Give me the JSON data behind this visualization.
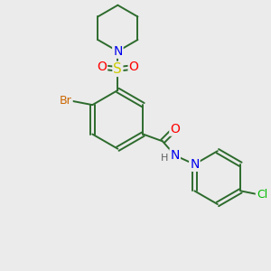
{
  "background_color": "#ebebeb",
  "bond_color": "#2d6b2d",
  "atom_colors": {
    "N": "#0000ee",
    "S": "#cccc00",
    "O": "#ff0000",
    "Br": "#cc6600",
    "Cl": "#00bb00",
    "H": "#606060",
    "C": "#2d6b2d"
  },
  "figsize": [
    3.0,
    3.0
  ],
  "dpi": 100
}
